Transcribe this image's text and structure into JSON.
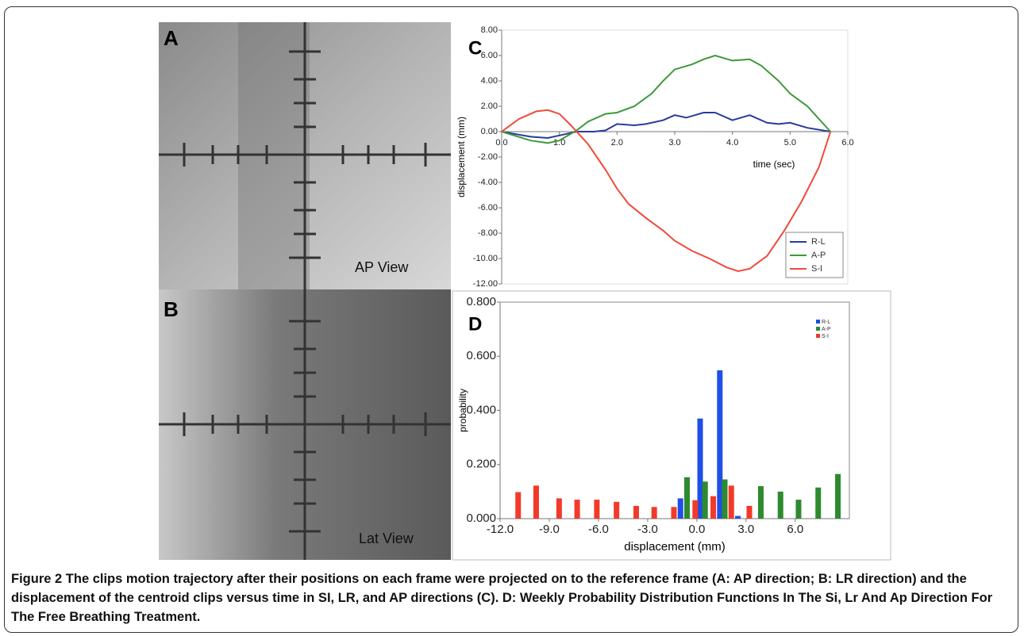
{
  "images": [
    {
      "label": "A",
      "caption": "AP View"
    },
    {
      "label": "B",
      "caption": "Lat View"
    }
  ],
  "chart_data": [
    {
      "type": "line",
      "panel_label": "C",
      "xlabel": "time (sec)",
      "ylabel": "displacement (mm)",
      "legend": "lower right",
      "xlim": [
        0,
        6
      ],
      "ylim": [
        -12,
        8
      ],
      "xticks": [
        {
          "value": 0,
          "label": "0.0"
        },
        {
          "value": 1,
          "label": "1.0"
        },
        {
          "value": 2,
          "label": "2.0"
        },
        {
          "value": 3,
          "label": "3.0"
        },
        {
          "value": 4,
          "label": "4.0"
        },
        {
          "value": 5,
          "label": "5.0"
        },
        {
          "value": 6,
          "label": "6.0"
        }
      ],
      "yticks": [
        {
          "value": 8,
          "label": "8.00"
        },
        {
          "value": 6,
          "label": "6.00"
        },
        {
          "value": 4,
          "label": "4.00"
        },
        {
          "value": 2,
          "label": "2.00"
        },
        {
          "value": 0,
          "label": "0.00"
        },
        {
          "value": -2,
          "label": "-2.00"
        },
        {
          "value": -4,
          "label": "-4.00"
        },
        {
          "value": -6,
          "label": "-6.00"
        },
        {
          "value": -8,
          "label": "-8.00"
        },
        {
          "value": -10,
          "label": "-10.00"
        },
        {
          "value": -12,
          "label": "-12.00"
        }
      ],
      "series": [
        {
          "name": "R-L",
          "color": "#2b3a9b",
          "x": [
            0,
            0.5,
            0.8,
            1.0,
            1.3,
            1.6,
            1.8,
            2.0,
            2.3,
            2.5,
            2.8,
            3.0,
            3.2,
            3.5,
            3.7,
            4.0,
            4.3,
            4.6,
            4.8,
            5.0,
            5.3,
            5.7
          ],
          "values": [
            0,
            -0.4,
            -0.5,
            -0.3,
            0,
            0,
            0.1,
            0.6,
            0.5,
            0.6,
            0.9,
            1.3,
            1.1,
            1.5,
            1.5,
            0.9,
            1.3,
            0.7,
            0.6,
            0.7,
            0.3,
            0
          ]
        },
        {
          "name": "A-P",
          "color": "#3a9a3a",
          "x": [
            0,
            0.5,
            0.8,
            1.0,
            1.3,
            1.5,
            1.8,
            2.0,
            2.3,
            2.6,
            2.8,
            3.0,
            3.3,
            3.5,
            3.7,
            4.0,
            4.3,
            4.5,
            4.8,
            5.0,
            5.3,
            5.6,
            5.7
          ],
          "values": [
            0,
            -0.7,
            -0.9,
            -0.7,
            0.1,
            0.8,
            1.4,
            1.5,
            2.0,
            3.0,
            4.0,
            4.9,
            5.3,
            5.7,
            6.0,
            5.6,
            5.7,
            5.2,
            4.0,
            3.0,
            2.0,
            0.5,
            0
          ]
        },
        {
          "name": "S-I",
          "color": "#f04a3a",
          "x": [
            0,
            0.3,
            0.6,
            0.8,
            1.0,
            1.2,
            1.5,
            1.8,
            2.0,
            2.2,
            2.5,
            2.8,
            3.0,
            3.3,
            3.6,
            3.9,
            4.1,
            4.3,
            4.6,
            4.9,
            5.2,
            5.5,
            5.7
          ],
          "values": [
            0,
            1.0,
            1.6,
            1.7,
            1.4,
            0.5,
            -1.0,
            -3.0,
            -4.5,
            -5.7,
            -6.8,
            -7.8,
            -8.6,
            -9.4,
            -10.0,
            -10.7,
            -11.0,
            -10.8,
            -9.8,
            -7.8,
            -5.5,
            -2.8,
            0
          ]
        }
      ]
    },
    {
      "type": "bar",
      "panel_label": "D",
      "xlabel": "displacement (mm)",
      "ylabel": "probability",
      "legend": "upper right",
      "xlim": [
        -12,
        9.3
      ],
      "ylim": [
        0,
        0.8
      ],
      "xticks": [
        {
          "value": -12,
          "label": "-12.0"
        },
        {
          "value": -9,
          "label": "-9.0"
        },
        {
          "value": -6,
          "label": "-6.0"
        },
        {
          "value": -3,
          "label": "-3.0"
        },
        {
          "value": 0,
          "label": "0.0"
        },
        {
          "value": 3,
          "label": "3.0"
        },
        {
          "value": 6,
          "label": "6.0"
        }
      ],
      "yticks": [
        {
          "value": 0,
          "label": "0.000"
        },
        {
          "value": 0.2,
          "label": "0.200"
        },
        {
          "value": 0.4,
          "label": "0.400"
        },
        {
          "value": 0.6,
          "label": "0.600"
        },
        {
          "value": 0.8,
          "label": "0.800"
        }
      ],
      "series": [
        {
          "name": "R-L",
          "color": "#1f4fe8",
          "x": [
            -1.0,
            0.2,
            1.4,
            2.5
          ],
          "values": [
            0.075,
            0.37,
            0.548,
            0.01
          ]
        },
        {
          "name": "A-P",
          "color": "#2e8a2e",
          "x": [
            -0.6,
            0.5,
            1.7,
            3.9,
            5.1,
            6.2,
            7.4,
            8.6
          ],
          "values": [
            0.153,
            0.137,
            0.145,
            0.12,
            0.1,
            0.07,
            0.115,
            0.165
          ]
        },
        {
          "name": "S-I",
          "color": "#f23a2a",
          "x": [
            -10.9,
            -9.8,
            -8.4,
            -7.3,
            -6.1,
            -4.9,
            -3.7,
            -2.6,
            -1.4,
            -0.1,
            1.0,
            2.1,
            3.2
          ],
          "values": [
            0.098,
            0.122,
            0.075,
            0.07,
            0.07,
            0.062,
            0.047,
            0.043,
            0.043,
            0.068,
            0.083,
            0.122,
            0.047
          ]
        }
      ]
    }
  ],
  "caption": {
    "label": "Figure 2",
    "text": "The clips motion trajectory after their positions on each frame were projected on to the reference frame (A: AP direction; B: LR direction) and the displacement of the centroid clips versus time in SI, LR, and AP directions (C). D: Weekly Probability Distribution Functions In The Si, Lr And Ap Direction For The Free Breathing Treatment."
  }
}
